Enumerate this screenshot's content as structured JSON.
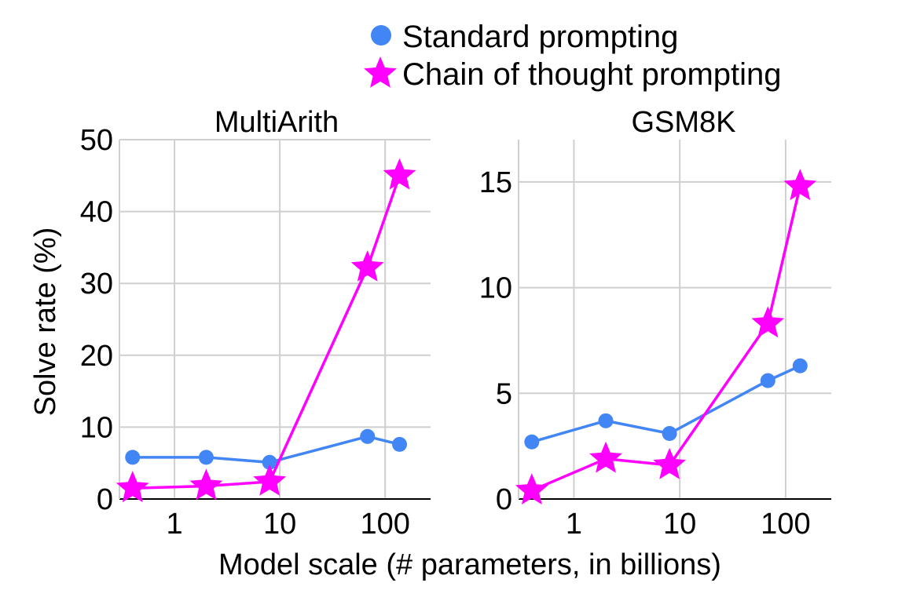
{
  "legend": [
    {
      "label": "Standard prompting",
      "marker": "circle",
      "color": "#4285f4"
    },
    {
      "label": "Chain of thought prompting",
      "marker": "star",
      "color": "#ff00ff"
    }
  ],
  "ylabel": "Solve rate (%)",
  "xlabel": "Model scale (# parameters, in billions)",
  "chart_data": [
    {
      "type": "line",
      "title": "MultiArith",
      "x_scale": "log",
      "x": [
        0.4,
        2,
        8,
        68,
        137
      ],
      "xticks": [
        1,
        10,
        100
      ],
      "xtick_labels": [
        "1",
        "10",
        "100"
      ],
      "ylim": [
        0,
        50
      ],
      "yticks": [
        0,
        10,
        20,
        30,
        40,
        50
      ],
      "ytick_labels": [
        "0",
        "10",
        "20",
        "30",
        "40",
        "50"
      ],
      "grid": true,
      "series": [
        {
          "name": "Standard prompting",
          "color": "#4285f4",
          "marker": "circle",
          "values": [
            5.8,
            5.8,
            5.1,
            8.7,
            7.6
          ]
        },
        {
          "name": "Chain of thought prompting",
          "color": "#ff00ff",
          "marker": "star",
          "values": [
            1.5,
            1.8,
            2.4,
            32.2,
            45.0
          ]
        }
      ]
    },
    {
      "type": "line",
      "title": "GSM8K",
      "x_scale": "log",
      "x": [
        0.4,
        2,
        8,
        68,
        137
      ],
      "xticks": [
        1,
        10,
        100
      ],
      "xtick_labels": [
        "1",
        "10",
        "100"
      ],
      "ylim": [
        0,
        17
      ],
      "yticks": [
        0,
        5,
        10,
        15
      ],
      "ytick_labels": [
        "0",
        "5",
        "10",
        "15"
      ],
      "grid": true,
      "series": [
        {
          "name": "Standard prompting",
          "color": "#4285f4",
          "marker": "circle",
          "values": [
            2.7,
            3.7,
            3.1,
            5.6,
            6.3
          ]
        },
        {
          "name": "Chain of thought prompting",
          "color": "#ff00ff",
          "marker": "star",
          "values": [
            0.4,
            1.9,
            1.6,
            8.3,
            14.8
          ]
        }
      ]
    }
  ]
}
